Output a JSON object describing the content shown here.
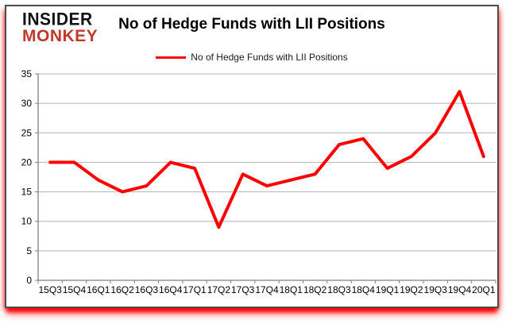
{
  "logo": {
    "line1": "INSIDER",
    "line2": "MONKEY"
  },
  "header": {
    "title": "No of Hedge Funds with LII Positions"
  },
  "legend": {
    "label": "No of Hedge Funds with LII Positions"
  },
  "colors": {
    "series_red": "#ff0000",
    "logo_black": "#121212",
    "logo_red": "#c0392b",
    "gridline_gray": "#b3b3b3",
    "axis_gray": "#808080",
    "frame_border": "#4d4d4d",
    "glow_red": "#ff0000"
  },
  "chart_data": {
    "type": "line",
    "title": "No of Hedge Funds with LII Positions",
    "categories": [
      "15Q3",
      "15Q4",
      "16Q1",
      "16Q2",
      "16Q3",
      "16Q4",
      "17Q1",
      "17Q2",
      "17Q3",
      "17Q4",
      "18Q1",
      "18Q2",
      "18Q3",
      "18Q4",
      "19Q1",
      "19Q2",
      "19Q3",
      "19Q4",
      "20Q1"
    ],
    "series": [
      {
        "name": "No of Hedge Funds with LII Positions",
        "color": "#ff0000",
        "values": [
          20,
          20,
          17,
          15,
          16,
          20,
          19,
          9,
          18,
          16,
          17,
          18,
          23,
          24,
          19,
          21,
          25,
          32,
          21
        ]
      }
    ],
    "xlabel": "",
    "ylabel": "",
    "ylim": [
      0,
      35
    ],
    "yticks": [
      0,
      5,
      10,
      15,
      20,
      25,
      30,
      35
    ],
    "grid": "horizontal",
    "legend_position": "top-center"
  }
}
